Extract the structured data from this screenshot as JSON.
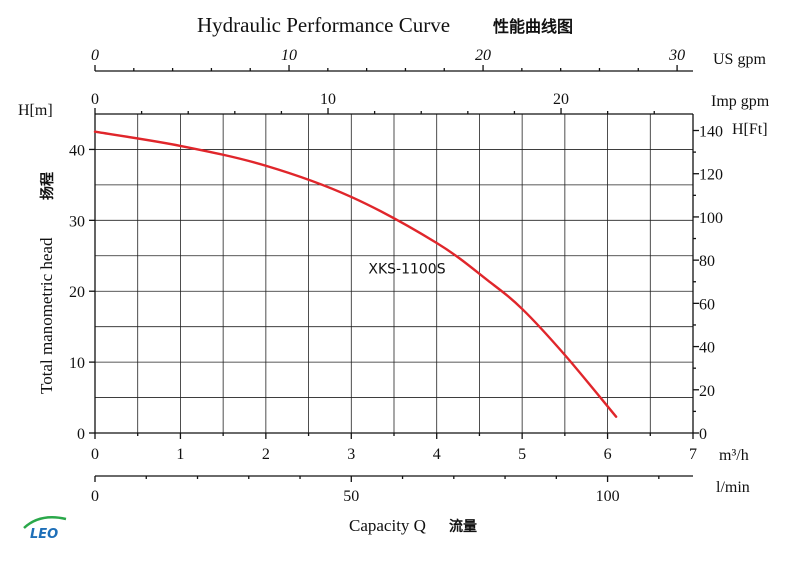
{
  "chart_data": {
    "type": "line",
    "title": "Hydraulic Performance Curve",
    "title_cn": "性能曲线图",
    "xlabel": "Capacity Q",
    "xlabel_cn": "流量",
    "ylabel": "Total manometric head",
    "ylabel_cn": "扬程",
    "y_unit_label": "H[m]",
    "y2_unit_label": "H[Ft]",
    "x_unit_label": "m³/h",
    "lmin_unit_label": "l/min",
    "usgpm_unit_label": "US gpm",
    "impgpm_unit_label": "Imp gpm",
    "xlim": [
      0,
      7
    ],
    "ylim": [
      0,
      45
    ],
    "grid": true,
    "x_ticks": [
      0,
      1,
      2,
      3,
      4,
      5,
      6,
      7
    ],
    "y_ticks": [
      0,
      10,
      20,
      30,
      40
    ],
    "ft_ticks": [
      0,
      20,
      40,
      60,
      80,
      100,
      120,
      140
    ],
    "lmin_ticks": [
      0,
      50,
      100
    ],
    "usgpm_ticks": [
      0,
      10,
      20,
      30
    ],
    "impgpm_ticks": [
      0,
      10,
      20
    ],
    "series": [
      {
        "name": "XKS-1100S",
        "color": "#e0262b",
        "x": [
          0,
          1,
          2,
          3,
          4,
          4.6,
          5,
          5.5,
          6.1
        ],
        "y": [
          42.5,
          40.5,
          37.7,
          33.3,
          26.8,
          21.5,
          17.5,
          11.0,
          2.3
        ]
      }
    ]
  },
  "logo": {
    "text": "LEO",
    "color": "#1e6fb8",
    "accent": "#2aa84a"
  }
}
